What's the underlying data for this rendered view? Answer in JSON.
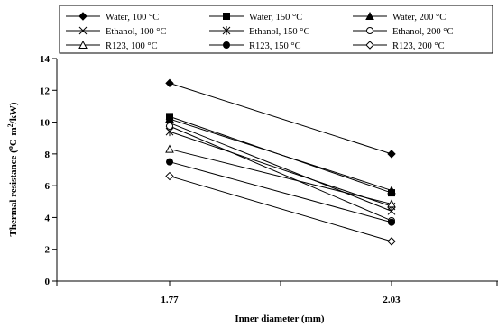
{
  "chart_data": {
    "type": "line",
    "x": [
      "1.77",
      "2.03"
    ],
    "xlabel": "Inner diameter (mm)",
    "ylabel": {
      "prefix": "Thermal resistance (",
      "sup1": "o",
      "mid": "C-m",
      "sup2": "2",
      "suffix": "/kW)"
    },
    "ylim": [
      0,
      14
    ],
    "yticks": [
      "0",
      "2",
      "4",
      "6",
      "8",
      "10",
      "12",
      "14"
    ],
    "grid": false,
    "legend_position": "top",
    "series": [
      {
        "name": "Water, 100 °C",
        "marker": "diamond-filled",
        "values": [
          12.45,
          8.0
        ]
      },
      {
        "name": "Water, 150 °C",
        "marker": "square-filled",
        "values": [
          10.35,
          5.55
        ]
      },
      {
        "name": "Water, 200 °C",
        "marker": "triangle-filled",
        "values": [
          10.2,
          5.7
        ]
      },
      {
        "name": "Ethanol, 100 °C",
        "marker": "x",
        "values": [
          9.95,
          4.4
        ]
      },
      {
        "name": "Ethanol, 150 °C",
        "marker": "star",
        "values": [
          9.4,
          4.7
        ]
      },
      {
        "name": "Ethanol, 200 °C",
        "marker": "circle-open",
        "values": [
          9.75,
          3.8
        ]
      },
      {
        "name": "R123, 100 °C",
        "marker": "triangle-open",
        "values": [
          8.3,
          4.85
        ]
      },
      {
        "name": "R123, 150 °C",
        "marker": "circle-filled",
        "values": [
          7.5,
          3.7
        ]
      },
      {
        "name": "R123, 200 °C",
        "marker": "diamond-open",
        "values": [
          6.6,
          2.5
        ]
      }
    ]
  }
}
